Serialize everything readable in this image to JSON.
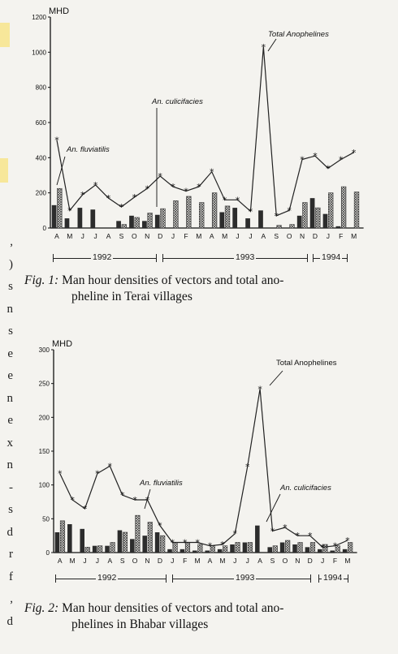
{
  "left_column_fragments": [
    ",",
    ")",
    "s",
    "n",
    "s",
    "e",
    "e",
    "n",
    "e",
    "x",
    "n",
    "-",
    "s",
    "d",
    "r",
    "f",
    ",",
    "d"
  ],
  "figure1": {
    "caption_label": "Fig. 1:",
    "caption_line1": "Man hour densities of vectors and total ano-",
    "caption_line2": "pheline in Terai villages",
    "year_labels": [
      "1992",
      "1993",
      "1994"
    ]
  },
  "figure2": {
    "caption_label": "Fig. 2:",
    "caption_line1": "Man hour densities of vectors and total ano-",
    "caption_line2": "phelines in Bhabar villages",
    "year_labels": [
      "1992",
      "1993",
      "1994"
    ]
  },
  "colors": {
    "ink": "#1a1a1a",
    "page": "#f4f3ef",
    "highlight": "#f7e79a"
  },
  "chart_data": [
    {
      "type": "bar",
      "title": "",
      "ylabel": "MHD",
      "ylim": [
        0,
        1200
      ],
      "yticks": [
        0,
        200,
        400,
        600,
        800,
        1000,
        1200
      ],
      "categories": [
        "A",
        "M",
        "J",
        "J",
        "A",
        "S",
        "O",
        "N",
        "D",
        "J",
        "F",
        "M",
        "A",
        "M",
        "J",
        "J",
        "A",
        "S",
        "O",
        "N",
        "D",
        "J",
        "F",
        "M"
      ],
      "legend": "annotations",
      "grid": false,
      "series": [
        {
          "name": "An. fluviatilis",
          "kind": "bar-solid",
          "values": [
            130,
            55,
            115,
            105,
            0,
            40,
            70,
            40,
            75,
            0,
            0,
            0,
            0,
            90,
            115,
            55,
            100,
            0,
            0,
            70,
            170,
            80,
            10,
            0
          ]
        },
        {
          "name": "An. culicifacies",
          "kind": "bar-hatched",
          "values": [
            225,
            0,
            0,
            0,
            0,
            20,
            60,
            85,
            110,
            155,
            180,
            145,
            200,
            125,
            0,
            0,
            0,
            15,
            20,
            145,
            115,
            200,
            235,
            205
          ]
        },
        {
          "name": "Total Anophelines",
          "kind": "line",
          "values": [
            500,
            100,
            190,
            245,
            170,
            120,
            175,
            225,
            295,
            235,
            210,
            235,
            320,
            160,
            160,
            95,
            1030,
            70,
            100,
            390,
            410,
            340,
            390,
            430
          ]
        }
      ],
      "annotations": [
        "Total Anophelines",
        "An. culicifacies",
        "An. fluviatilis"
      ]
    },
    {
      "type": "bar",
      "title": "",
      "ylabel": "MHD",
      "ylim": [
        0,
        300
      ],
      "yticks": [
        0,
        50,
        100,
        150,
        200,
        250,
        300
      ],
      "categories": [
        "A",
        "M",
        "J",
        "J",
        "A",
        "S",
        "O",
        "N",
        "D",
        "J",
        "F",
        "M",
        "A",
        "M",
        "J",
        "J",
        "A",
        "S",
        "O",
        "N",
        "D",
        "J",
        "F",
        "M"
      ],
      "legend": "annotations",
      "grid": false,
      "series": [
        {
          "name": "An. fluviatilis",
          "kind": "bar-solid",
          "values": [
            30,
            42,
            35,
            10,
            10,
            33,
            20,
            25,
            30,
            5,
            5,
            3,
            3,
            5,
            12,
            15,
            40,
            8,
            15,
            12,
            8,
            5,
            3,
            5
          ]
        },
        {
          "name": "An. culicifacies",
          "kind": "bar-hatched",
          "values": [
            47,
            0,
            8,
            10,
            15,
            30,
            55,
            45,
            25,
            15,
            15,
            12,
            10,
            10,
            15,
            15,
            0,
            10,
            18,
            15,
            15,
            12,
            10,
            15
          ]
        },
        {
          "name": "Total Anophelines",
          "kind": "line",
          "values": [
            117,
            78,
            65,
            117,
            128,
            85,
            78,
            78,
            40,
            15,
            15,
            15,
            10,
            12,
            28,
            127,
            242,
            32,
            37,
            25,
            25,
            8,
            10,
            18
          ]
        }
      ],
      "annotations": [
        "Total Anophelines",
        "An. fluviatilis",
        "An. culicifacies"
      ]
    }
  ]
}
